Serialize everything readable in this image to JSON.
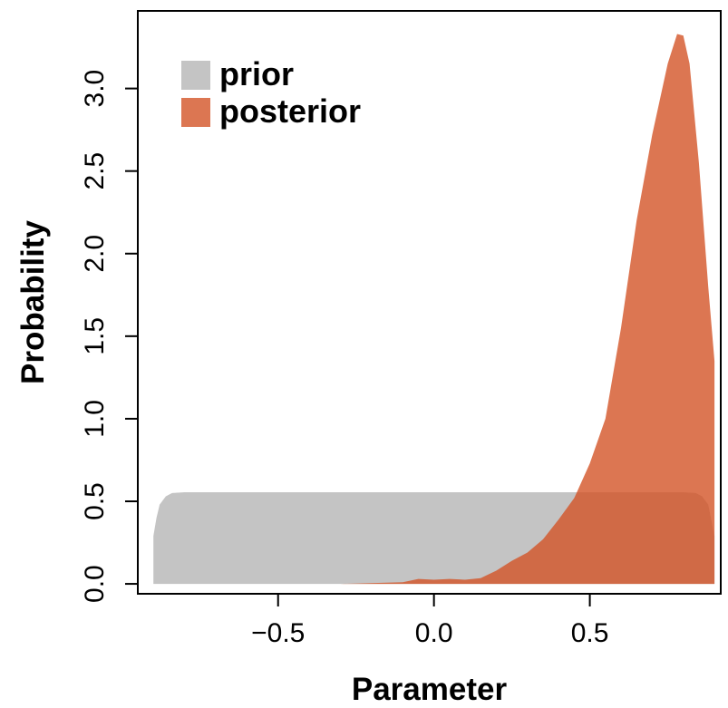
{
  "chart_data": {
    "type": "area",
    "title": "",
    "xlabel": "Parameter",
    "ylabel": "Probability",
    "xlim": [
      -0.95,
      0.92
    ],
    "ylim": [
      -0.06,
      3.47
    ],
    "x_ticks": [
      -0.5,
      0.0,
      0.5
    ],
    "x_tick_labels": [
      "−0.5",
      "0.0",
      "0.5"
    ],
    "y_ticks": [
      0.0,
      0.5,
      1.0,
      1.5,
      2.0,
      2.5,
      3.0
    ],
    "y_tick_labels": [
      "0.0",
      "0.5",
      "1.0",
      "1.5",
      "2.0",
      "2.5",
      "3.0"
    ],
    "grid": false,
    "legend_position": "top-left",
    "series": [
      {
        "name": "prior",
        "color": "#c4c4c4",
        "opacity": 1.0,
        "points": [
          [
            -0.9,
            0.0
          ],
          [
            -0.9,
            0.29
          ],
          [
            -0.89,
            0.4
          ],
          [
            -0.88,
            0.48
          ],
          [
            -0.86,
            0.53
          ],
          [
            -0.84,
            0.55
          ],
          [
            -0.8,
            0.555
          ],
          [
            -0.5,
            0.555
          ],
          [
            0.0,
            0.555
          ],
          [
            0.5,
            0.555
          ],
          [
            0.8,
            0.555
          ],
          [
            0.84,
            0.55
          ],
          [
            0.86,
            0.53
          ],
          [
            0.88,
            0.48
          ],
          [
            0.9,
            0.29
          ],
          [
            0.9,
            0.0
          ]
        ]
      },
      {
        "name": "posterior",
        "color": "#d35427",
        "opacity": 0.8,
        "points": [
          [
            -0.3,
            0.0
          ],
          [
            -0.1,
            0.01
          ],
          [
            -0.05,
            0.03
          ],
          [
            0.0,
            0.025
          ],
          [
            0.05,
            0.03
          ],
          [
            0.1,
            0.025
          ],
          [
            0.15,
            0.035
          ],
          [
            0.2,
            0.08
          ],
          [
            0.25,
            0.14
          ],
          [
            0.3,
            0.19
          ],
          [
            0.35,
            0.27
          ],
          [
            0.4,
            0.39
          ],
          [
            0.45,
            0.52
          ],
          [
            0.5,
            0.73
          ],
          [
            0.55,
            1.0
          ],
          [
            0.6,
            1.55
          ],
          [
            0.65,
            2.2
          ],
          [
            0.7,
            2.72
          ],
          [
            0.75,
            3.15
          ],
          [
            0.78,
            3.33
          ],
          [
            0.8,
            3.32
          ],
          [
            0.82,
            3.15
          ],
          [
            0.85,
            2.55
          ],
          [
            0.88,
            1.8
          ],
          [
            0.9,
            1.35
          ],
          [
            0.9,
            0.0
          ]
        ]
      }
    ]
  }
}
